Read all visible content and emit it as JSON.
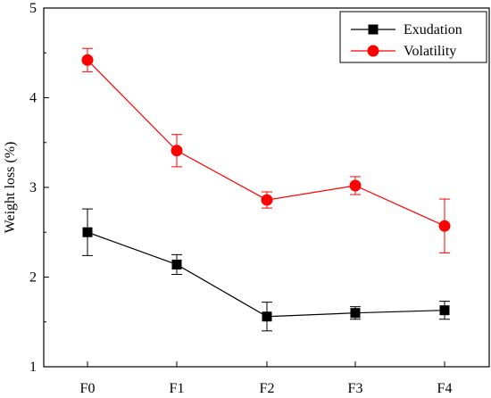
{
  "chart_data": {
    "type": "line",
    "title": "",
    "xlabel": "",
    "ylabel": "Weight loss (%)",
    "categories": [
      "F0",
      "F1",
      "F2",
      "F3",
      "F4"
    ],
    "ylim": [
      1,
      5
    ],
    "yticks": [
      "1",
      "2",
      "3",
      "4",
      "5"
    ],
    "grid": false,
    "legend_position": "top-right",
    "series": [
      {
        "name": "Exudation",
        "color": "#000000",
        "marker": "square",
        "values": [
          2.5,
          2.14,
          1.56,
          1.6,
          1.63
        ],
        "error": [
          0.26,
          0.11,
          0.16,
          0.07,
          0.1
        ]
      },
      {
        "name": "Volatility",
        "color": "#ff0000",
        "marker": "circle",
        "values": [
          4.42,
          3.41,
          2.86,
          3.02,
          2.57
        ],
        "error": [
          0.13,
          0.18,
          0.09,
          0.1,
          0.3
        ]
      }
    ]
  }
}
